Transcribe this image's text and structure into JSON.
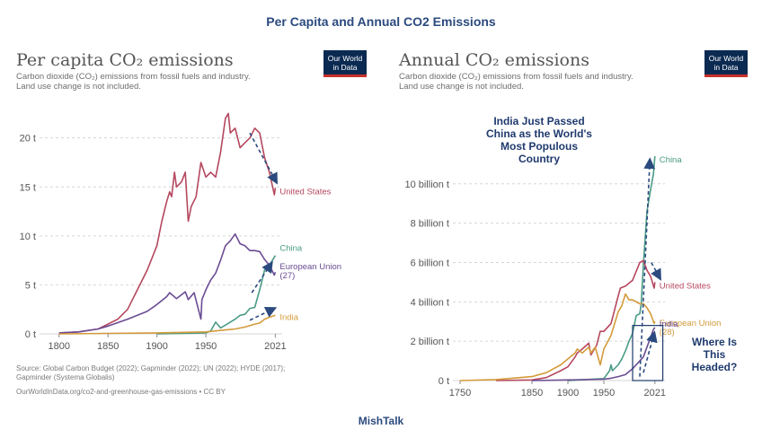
{
  "header": {
    "title": "Per Capita and Annual CO2 Emissions"
  },
  "footer": {
    "text": "MishTalk"
  },
  "logo_text": [
    "Our World",
    "in Data"
  ],
  "colors": {
    "us": "#b5475e",
    "china": "#4a9b86",
    "eu": "#6a4c93",
    "india": "#d39a3a",
    "annotation": "#1f3a6e",
    "arrow": "#2b4a7e"
  },
  "chart_data": [
    {
      "type": "line",
      "title": "Per capita CO₂ emissions",
      "subtitle_lines": [
        "Carbon dioxide (CO₂) emissions from fossil fuels and industry.",
        "Land use change is not included."
      ],
      "xlabel": "",
      "ylabel": "",
      "xlim": [
        1780,
        2028
      ],
      "ylim": [
        0,
        24
      ],
      "x_ticks": [
        "1800",
        "1850",
        "1900",
        "1950",
        "2021"
      ],
      "x_tick_values": [
        1800,
        1850,
        1900,
        1950,
        2021
      ],
      "y_ticks": [
        "0 t",
        "5 t",
        "10 t",
        "15 t",
        "20 t"
      ],
      "y_tick_values": [
        0,
        5,
        10,
        15,
        20
      ],
      "source_lines": [
        "Source: Global Carbon Budget (2022); Gapminder (2022); UN (2022); HYDE (2017);",
        "Gapminder (Systema Globalis)"
      ],
      "url": "OurWorldInData.org/co2-and-greenhouse-gas-emissions • CC BY",
      "series": [
        {
          "name": "United States",
          "label_lines": [
            "United States"
          ],
          "color_key": "us",
          "x": [
            1800,
            1820,
            1840,
            1850,
            1860,
            1870,
            1880,
            1890,
            1900,
            1905,
            1910,
            1913,
            1915,
            1918,
            1920,
            1925,
            1929,
            1932,
            1935,
            1940,
            1945,
            1950,
            1955,
            1960,
            1965,
            1970,
            1973,
            1975,
            1980,
            1985,
            1990,
            1995,
            2000,
            2005,
            2010,
            2015,
            2020,
            2021
          ],
          "y": [
            0.1,
            0.2,
            0.5,
            1.0,
            1.5,
            2.5,
            4.5,
            6.5,
            9.0,
            11.5,
            13.5,
            14.5,
            14.0,
            16.5,
            15.0,
            15.5,
            16.5,
            11.5,
            13.0,
            14.0,
            17.5,
            16.0,
            16.5,
            16.0,
            18.5,
            22.0,
            22.5,
            20.5,
            21.0,
            19.0,
            19.5,
            20.0,
            21.0,
            20.5,
            18.0,
            16.5,
            14.2,
            14.9
          ]
        },
        {
          "name": "China",
          "label_lines": [
            "China"
          ],
          "color_key": "china",
          "x": [
            1900,
            1950,
            1955,
            1960,
            1965,
            1970,
            1975,
            1980,
            1985,
            1990,
            1995,
            2000,
            2005,
            2010,
            2015,
            2021
          ],
          "y": [
            0,
            0.1,
            0.3,
            1.2,
            0.6,
            0.9,
            1.2,
            1.5,
            1.9,
            2.0,
            2.6,
            2.7,
            4.5,
            6.5,
            7.0,
            8.0
          ]
        },
        {
          "name": "European Union (27)",
          "label_lines": [
            "European Union",
            "(27)"
          ],
          "color_key": "eu",
          "x": [
            1800,
            1820,
            1840,
            1850,
            1870,
            1890,
            1900,
            1910,
            1913,
            1920,
            1929,
            1932,
            1938,
            1945,
            1946,
            1950,
            1955,
            1960,
            1965,
            1970,
            1975,
            1980,
            1985,
            1990,
            1995,
            2000,
            2005,
            2010,
            2015,
            2020,
            2021
          ],
          "y": [
            0.1,
            0.2,
            0.5,
            0.8,
            1.5,
            2.3,
            3.0,
            3.8,
            4.2,
            3.6,
            4.3,
            3.5,
            4.2,
            1.5,
            3.5,
            4.5,
            5.5,
            6.2,
            7.5,
            9.0,
            9.5,
            10.2,
            9.2,
            9.0,
            8.5,
            8.5,
            8.4,
            7.6,
            7.0,
            6.0,
            6.3
          ]
        },
        {
          "name": "India",
          "label_lines": [
            "India"
          ],
          "color_key": "india",
          "x": [
            1800,
            1900,
            1950,
            1960,
            1970,
            1980,
            1990,
            2000,
            2005,
            2010,
            2015,
            2021
          ],
          "y": [
            0,
            0.1,
            0.2,
            0.3,
            0.4,
            0.5,
            0.7,
            1.0,
            1.1,
            1.5,
            1.7,
            1.9
          ]
        }
      ]
    },
    {
      "type": "line",
      "title": "Annual CO₂ emissions",
      "subtitle_lines": [
        "Carbon dioxide (CO₂) emissions from fossil fuels and industry.",
        "Land use change is not included."
      ],
      "xlabel": "",
      "ylabel": "",
      "xlim": [
        1740,
        2035
      ],
      "ylim": [
        0,
        12.5
      ],
      "x_ticks": [
        "1750",
        "1850",
        "1900",
        "1950",
        "2021"
      ],
      "x_tick_values": [
        1750,
        1850,
        1900,
        1950,
        2021
      ],
      "y_ticks": [
        "0 t",
        "2 billion t",
        "4 billion t",
        "6 billion t",
        "8 billion t",
        "10 billion t"
      ],
      "y_tick_values": [
        0,
        2,
        4,
        6,
        8,
        10
      ],
      "annotations": {
        "title_lines": [
          "India Just Passed",
          "China as the World's",
          "Most Populous",
          "Country"
        ],
        "box_lines": [
          "Where Is",
          "This",
          "Headed?"
        ]
      },
      "series": [
        {
          "name": "China",
          "label_lines": [
            "China"
          ],
          "color_key": "china",
          "x": [
            1900,
            1950,
            1958,
            1960,
            1962,
            1970,
            1975,
            1980,
            1985,
            1990,
            1995,
            2000,
            2002,
            2005,
            2010,
            2015,
            2019,
            2021
          ],
          "y": [
            0,
            0.1,
            0.5,
            0.8,
            0.5,
            0.8,
            1.1,
            1.5,
            2.0,
            2.4,
            3.3,
            3.4,
            3.9,
            5.9,
            8.6,
            9.7,
            10.5,
            11.4
          ]
        },
        {
          "name": "United States",
          "label_lines": [
            "United States"
          ],
          "color_key": "us",
          "x": [
            1800,
            1850,
            1870,
            1890,
            1900,
            1910,
            1913,
            1920,
            1929,
            1932,
            1940,
            1945,
            1950,
            1960,
            1970,
            1973,
            1980,
            1990,
            2000,
            2005,
            2010,
            2015,
            2020,
            2021
          ],
          "y": [
            0,
            0.03,
            0.15,
            0.5,
            0.7,
            1.2,
            1.4,
            1.6,
            1.9,
            1.3,
            1.8,
            2.5,
            2.5,
            2.9,
            4.3,
            4.7,
            4.8,
            5.1,
            6.0,
            6.1,
            5.6,
            5.3,
            4.7,
            5.0
          ]
        },
        {
          "name": "European Union (28)",
          "label_lines": [
            "European Union",
            "(28)"
          ],
          "color_key": "india",
          "x": [
            1750,
            1800,
            1850,
            1870,
            1890,
            1900,
            1910,
            1913,
            1920,
            1929,
            1932,
            1938,
            1945,
            1950,
            1960,
            1970,
            1975,
            1980,
            1985,
            1990,
            2000,
            2005,
            2010,
            2015,
            2020,
            2021
          ],
          "y": [
            0,
            0.05,
            0.2,
            0.4,
            0.8,
            1.1,
            1.4,
            1.6,
            1.4,
            1.7,
            1.4,
            1.7,
            0.8,
            1.6,
            2.3,
            3.5,
            3.8,
            4.4,
            4.1,
            4.1,
            3.9,
            3.9,
            3.7,
            3.4,
            2.9,
            3.0
          ]
        },
        {
          "name": "India",
          "label_lines": [
            "India"
          ],
          "color_key": "eu",
          "x": [
            1850,
            1900,
            1950,
            1960,
            1970,
            1980,
            1990,
            2000,
            2005,
            2010,
            2015,
            2019,
            2021
          ],
          "y": [
            0,
            0.03,
            0.07,
            0.12,
            0.2,
            0.3,
            0.6,
            1.0,
            1.2,
            1.7,
            2.2,
            2.6,
            2.7
          ]
        }
      ]
    }
  ]
}
